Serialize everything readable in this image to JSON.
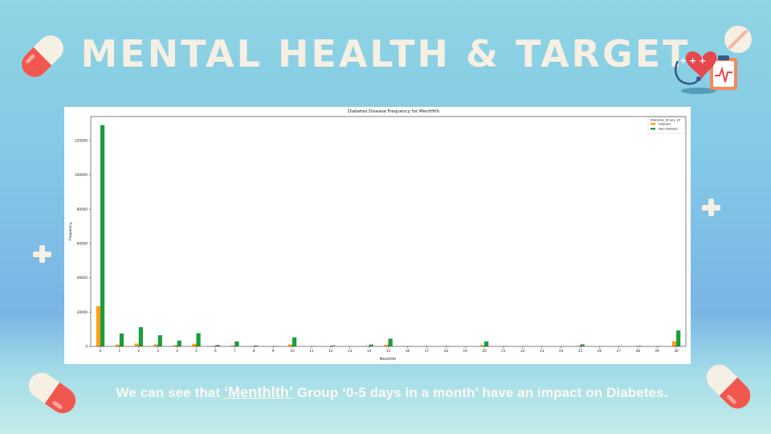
{
  "slide": {
    "title": "MENTAL HEALTH & TARGET",
    "caption": {
      "prefix": "We can see that ",
      "highlight": "‘Menthlth’",
      "suffix": " Group ‘0-5 days in a month’ have an impact on Diabetes."
    }
  },
  "icons": {
    "top_left": "capsule-pill-icon",
    "top_right": "round-tablet-icon",
    "medical": "heart-stethoscope-clipboard-icon",
    "plus_left": "plus-icon",
    "plus_right": "plus-icon",
    "bottom_left": "capsule-pill-icon",
    "bottom_right": "capsule-pill-icon"
  },
  "colors": {
    "accent": "#f6efe3",
    "diabetic": "#ff9f1a",
    "non_diabetic": "#1a9e3a",
    "pill_red": "#f0584f",
    "pill_white": "#f6efe3"
  },
  "chart_data": {
    "type": "bar",
    "title": "Diabetes Disease Frequency for MentHlth",
    "xlabel": "MentHlth",
    "ylabel": "Frequency",
    "legend_title": "Diabetes_binary_str",
    "legend_position": "top-right",
    "grid": false,
    "ylim": [
      0,
      134000
    ],
    "yticks": [
      0,
      20000,
      40000,
      60000,
      80000,
      100000,
      120000
    ],
    "categories": [
      "0",
      "1",
      "2",
      "3",
      "4",
      "5",
      "6",
      "7",
      "8",
      "9",
      "10",
      "11",
      "12",
      "13",
      "14",
      "15",
      "16",
      "17",
      "18",
      "19",
      "20",
      "21",
      "22",
      "23",
      "24",
      "25",
      "26",
      "27",
      "28",
      "29",
      "30"
    ],
    "series": [
      {
        "name": "Diabetic",
        "values": [
          23500,
          1100,
          1600,
          1200,
          700,
          1500,
          300,
          500,
          150,
          50,
          1200,
          20,
          150,
          20,
          300,
          1000,
          50,
          20,
          50,
          10,
          800,
          50,
          20,
          10,
          20,
          300,
          10,
          20,
          50,
          30,
          3000
        ]
      },
      {
        "name": "Non-Diabetic",
        "values": [
          129000,
          7500,
          11200,
          6500,
          3400,
          7700,
          800,
          2900,
          500,
          200,
          5300,
          100,
          500,
          100,
          1100,
          4500,
          200,
          100,
          200,
          50,
          2900,
          200,
          100,
          50,
          100,
          1200,
          50,
          100,
          300,
          150,
          9300
        ]
      }
    ]
  }
}
